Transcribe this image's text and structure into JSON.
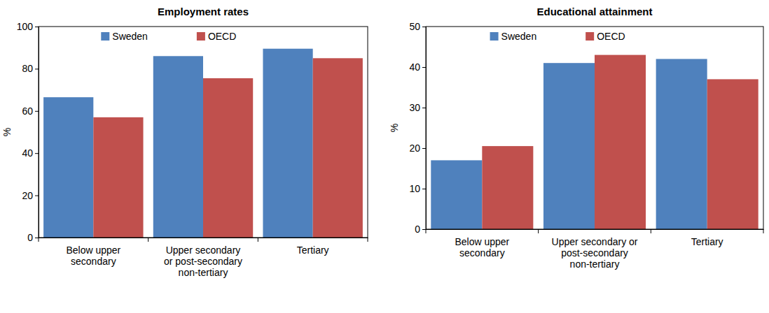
{
  "chart_data": [
    {
      "type": "bar",
      "title": "Employment rates",
      "y_label": "%",
      "categories": [
        "Below upper secondary",
        "Upper secondary or post-secondary non-tertiary",
        "Tertiary"
      ],
      "series": [
        {
          "name": "Sweden",
          "color": "#4f81bd",
          "values": [
            66.5,
            86,
            89.5
          ]
        },
        {
          "name": "OECD",
          "color": "#c0504d",
          "values": [
            57,
            75.5,
            85
          ]
        }
      ],
      "ylim": [
        0,
        100
      ],
      "yticks": [
        0,
        20,
        40,
        60,
        80,
        100
      ],
      "grid": false,
      "legend": "top-left"
    },
    {
      "type": "bar",
      "title": "Educational attainment",
      "y_label": "%",
      "categories": [
        "Below upper secondary",
        "Upper secondary or post-secondary non-tertiary",
        "Tertiary"
      ],
      "series": [
        {
          "name": "Sweden",
          "color": "#4f81bd",
          "values": [
            17,
            41,
            42
          ]
        },
        {
          "name": "OECD",
          "color": "#c0504d",
          "values": [
            20.5,
            43,
            37
          ]
        }
      ],
      "ylim": [
        0,
        50
      ],
      "yticks": [
        0,
        10,
        20,
        30,
        40,
        50
      ],
      "grid": false,
      "legend": "top-left"
    }
  ]
}
